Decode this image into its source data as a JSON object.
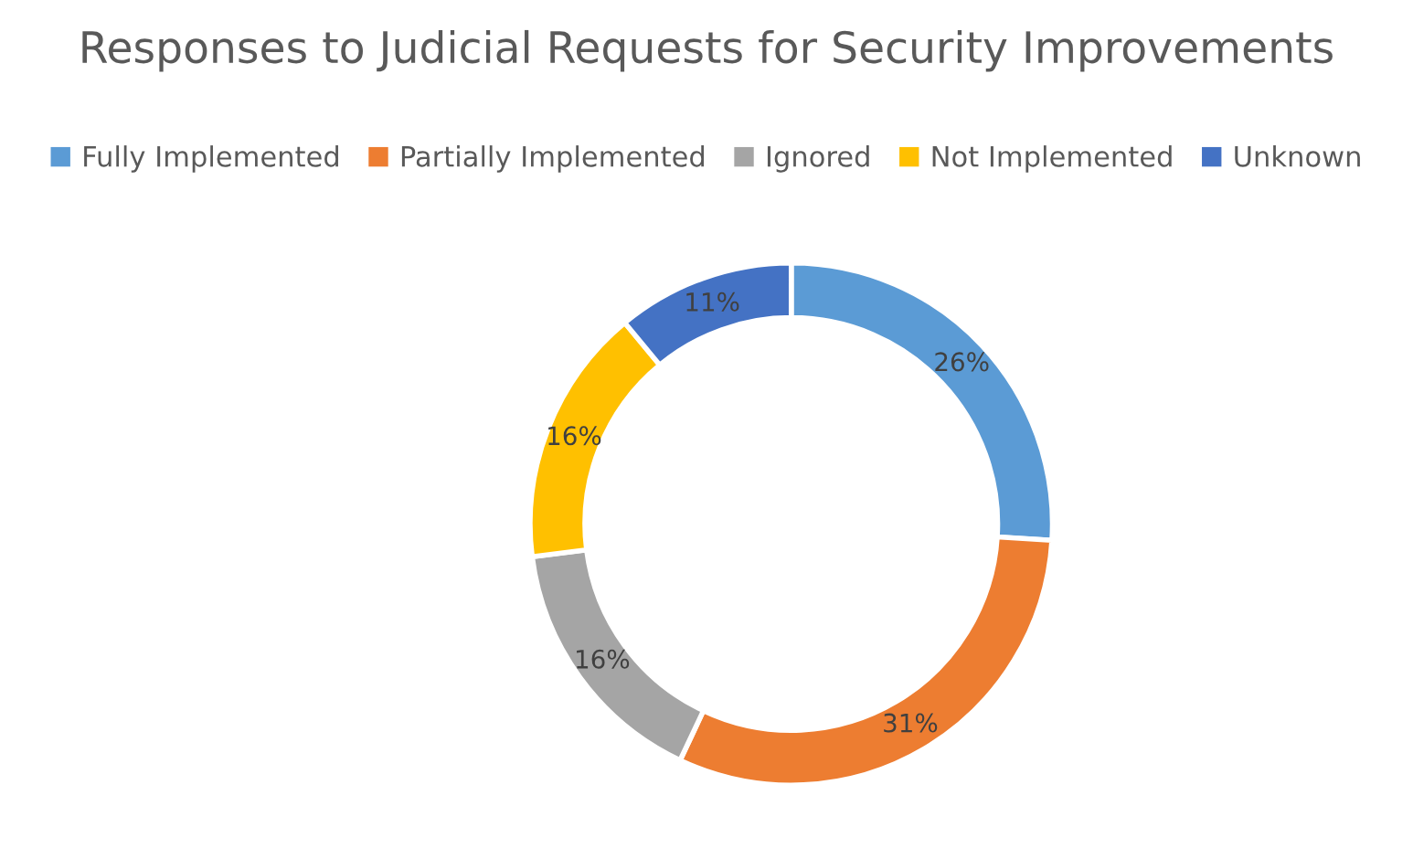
{
  "chart_data": {
    "type": "donut",
    "title": "Responses to Judicial Requests for Security Improvements",
    "categories": [
      "Fully Implemented",
      "Partially Implemented",
      "Ignored",
      "Not Implemented",
      "Unknown"
    ],
    "values": [
      26,
      31,
      16,
      16,
      11
    ],
    "colors": [
      "#5b9bd5",
      "#ed7d31",
      "#a5a5a5",
      "#ffc000",
      "#4472c4"
    ],
    "value_labels": [
      "26%",
      "31%",
      "16%",
      "16%",
      "11%"
    ],
    "legend": "top"
  }
}
